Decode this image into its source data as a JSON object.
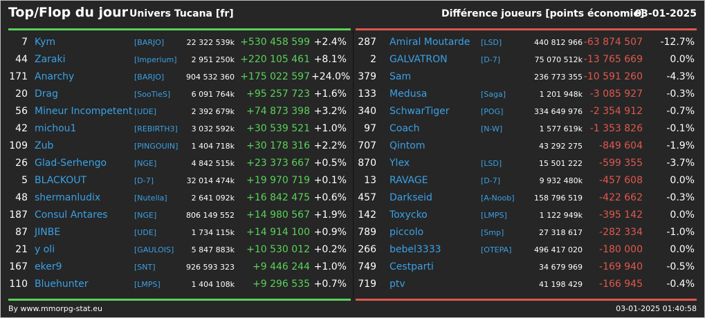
{
  "header": {
    "title": "Top/Flop du jour",
    "universe": "Univers Tucana [fr]",
    "subtitle": "Différence joueurs [points économie]",
    "date": "03-01-2025"
  },
  "colors": {
    "gain": "#5ad25a",
    "loss": "#e0584e",
    "name": "#3aa1e6",
    "background": "#262626"
  },
  "top": [
    {
      "rank": "7",
      "name": "Kym",
      "alliance": "[BARJO]",
      "points": "22 322 539k",
      "diff": "+530 458 599",
      "pct": "+2.4%"
    },
    {
      "rank": "44",
      "name": "Zaraki",
      "alliance": "[Imperium]",
      "points": "2 951 250k",
      "diff": "+220 105 461",
      "pct": "+8.1%"
    },
    {
      "rank": "171",
      "name": "Anarchy",
      "alliance": "[BARJO]",
      "points": "904 532 360",
      "diff": "+175 022 597",
      "pct": "+24.0%"
    },
    {
      "rank": "20",
      "name": "Drag",
      "alliance": "[SooTieS]",
      "points": "6 091 764k",
      "diff": "+95 257 723",
      "pct": "+1.6%"
    },
    {
      "rank": "56",
      "name": "Mineur Incompetent",
      "alliance": "[UDE]",
      "points": "2 392 679k",
      "diff": "+74 873 398",
      "pct": "+3.2%"
    },
    {
      "rank": "42",
      "name": "michou1",
      "alliance": "[REBIRTH3]",
      "points": "3 032 592k",
      "diff": "+30 539 521",
      "pct": "+1.0%"
    },
    {
      "rank": "109",
      "name": "Zub",
      "alliance": "[PINGOUIN]",
      "points": "1 404 718k",
      "diff": "+30 178 316",
      "pct": "+2.2%"
    },
    {
      "rank": "26",
      "name": "Glad-Serhengo",
      "alliance": "[NGE]",
      "points": "4 842 515k",
      "diff": "+23 373 667",
      "pct": "+0.5%"
    },
    {
      "rank": "5",
      "name": "BLACKOUT",
      "alliance": "[D-7]",
      "points": "32 014 474k",
      "diff": "+19 970 719",
      "pct": "+0.1%"
    },
    {
      "rank": "48",
      "name": "shermanludix",
      "alliance": "[Nutella]",
      "points": "2 641 092k",
      "diff": "+16 842 475",
      "pct": "+0.6%"
    },
    {
      "rank": "187",
      "name": "Consul Antares",
      "alliance": "[NGE]",
      "points": "806 149 552",
      "diff": "+14 980 567",
      "pct": "+1.9%"
    },
    {
      "rank": "87",
      "name": "JINBE",
      "alliance": "[UDE]",
      "points": "1 734 115k",
      "diff": "+14 914 100",
      "pct": "+0.9%"
    },
    {
      "rank": "21",
      "name": "y oli",
      "alliance": "[GAULOIS]",
      "points": "5 847 883k",
      "diff": "+10 530 012",
      "pct": "+0.2%"
    },
    {
      "rank": "167",
      "name": "eker9",
      "alliance": "[SNT]",
      "points": "926 593 323",
      "diff": "+9 446 244",
      "pct": "+1.0%"
    },
    {
      "rank": "110",
      "name": "Bluehunter",
      "alliance": "[LMPS]",
      "points": "1 404 108k",
      "diff": "+9 296 535",
      "pct": "+0.7%"
    }
  ],
  "flop": [
    {
      "rank": "287",
      "name": "Amiral Moutarde",
      "alliance": "[LSD]",
      "points": "440 812 966",
      "diff": "-63 874 507",
      "pct": "-12.7%"
    },
    {
      "rank": "2",
      "name": "GALVATRON",
      "alliance": "[D-7]",
      "points": "75 070 512k",
      "diff": "-13 765 669",
      "pct": "0.0%"
    },
    {
      "rank": "379",
      "name": "Sam",
      "alliance": "",
      "points": "236 773 355",
      "diff": "-10 591 260",
      "pct": "-4.3%"
    },
    {
      "rank": "133",
      "name": "Medusa",
      "alliance": "[Saga]",
      "points": "1 201 948k",
      "diff": "-3 085 927",
      "pct": "-0.3%"
    },
    {
      "rank": "340",
      "name": "SchwarTiger",
      "alliance": "[POG]",
      "points": "334 649 976",
      "diff": "-2 354 912",
      "pct": "-0.7%"
    },
    {
      "rank": "97",
      "name": "Coach",
      "alliance": "[N-W]",
      "points": "1 577 619k",
      "diff": "-1 353 826",
      "pct": "-0.1%"
    },
    {
      "rank": "707",
      "name": "Qintom",
      "alliance": "",
      "points": "43 292 275",
      "diff": "-849 604",
      "pct": "-1.9%"
    },
    {
      "rank": "870",
      "name": "Ylex",
      "alliance": "[LSD]",
      "points": "15 501 222",
      "diff": "-599 355",
      "pct": "-3.7%"
    },
    {
      "rank": "13",
      "name": "RAVAGE",
      "alliance": "[D-7]",
      "points": "9 932 480k",
      "diff": "-457 608",
      "pct": "0.0%"
    },
    {
      "rank": "457",
      "name": "Darkseid",
      "alliance": "[A-Noob]",
      "points": "158 796 519",
      "diff": "-422 662",
      "pct": "-0.3%"
    },
    {
      "rank": "142",
      "name": "Toxycko",
      "alliance": "[LMPS]",
      "points": "1 122 949k",
      "diff": "-395 142",
      "pct": "0.0%"
    },
    {
      "rank": "789",
      "name": "piccolo",
      "alliance": "[Smp]",
      "points": "27 318 617",
      "diff": "-282 334",
      "pct": "-1.0%"
    },
    {
      "rank": "266",
      "name": "bebel3333",
      "alliance": "[OTEPA]",
      "points": "496 417 020",
      "diff": "-180 000",
      "pct": "0.0%"
    },
    {
      "rank": "749",
      "name": "Cestparti",
      "alliance": "",
      "points": "34 679 969",
      "diff": "-169 940",
      "pct": "-0.5%"
    },
    {
      "rank": "719",
      "name": "ptv",
      "alliance": "",
      "points": "41 198 429",
      "diff": "-166 945",
      "pct": "-0.4%"
    }
  ],
  "footer": {
    "source": "By www.mmorpg-stat.eu",
    "timestamp": "03-01-2025 01:40:58"
  }
}
